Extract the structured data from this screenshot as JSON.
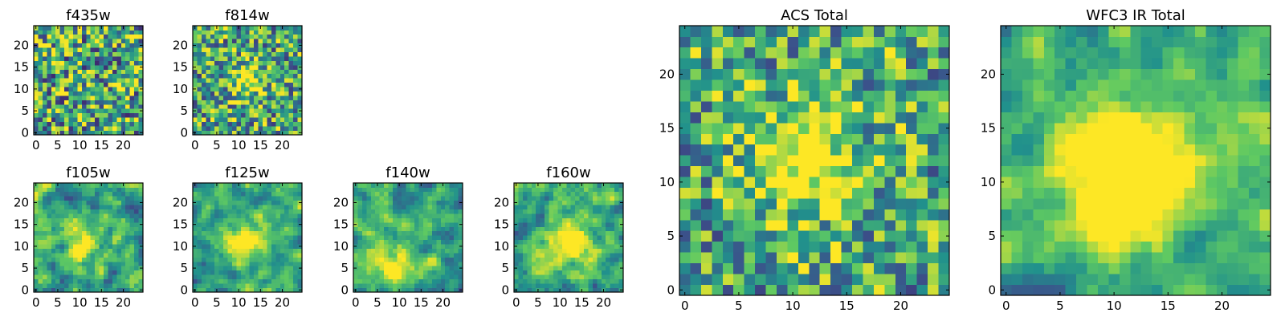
{
  "figure": {
    "colormap": "viridis",
    "colormap_stops": [
      "#440154",
      "#3b528b",
      "#21918c",
      "#5ec962",
      "#fde725"
    ]
  },
  "chart_data": [
    {
      "id": "f435w",
      "type": "heatmap",
      "title": "f435w",
      "grid_size": 25,
      "xlim": [
        0,
        24
      ],
      "ylim": [
        0,
        24
      ],
      "origin": "lower",
      "x_ticks": [
        0,
        5,
        10,
        15,
        20
      ],
      "y_ticks": [
        0,
        5,
        10,
        15,
        20
      ],
      "x_tick_labels": [
        "0",
        "5",
        "10",
        "15",
        "20"
      ],
      "y_tick_labels": [
        "0",
        "5",
        "10",
        "15",
        "20"
      ],
      "pattern": "noise",
      "noise_level": 0.95,
      "seed": 11,
      "peak": {
        "x": 12,
        "y": 12,
        "amplitude": 0.0,
        "width": 4
      }
    },
    {
      "id": "f814w",
      "type": "heatmap",
      "title": "f814w",
      "grid_size": 25,
      "xlim": [
        0,
        24
      ],
      "ylim": [
        0,
        24
      ],
      "origin": "lower",
      "x_ticks": [
        0,
        5,
        10,
        15,
        20
      ],
      "y_ticks": [
        0,
        5,
        10,
        15,
        20
      ],
      "x_tick_labels": [
        "0",
        "5",
        "10",
        "15",
        "20"
      ],
      "y_tick_labels": [
        "0",
        "5",
        "10",
        "15",
        "20"
      ],
      "pattern": "noise",
      "noise_level": 0.85,
      "seed": 23,
      "peak": {
        "x": 12,
        "y": 12,
        "amplitude": 0.5,
        "width": 2.5
      }
    },
    {
      "id": "f105w",
      "type": "heatmap",
      "title": "f105w",
      "grid_size": 25,
      "xlim": [
        0,
        24
      ],
      "ylim": [
        0,
        24
      ],
      "origin": "lower",
      "x_ticks": [
        0,
        5,
        10,
        15,
        20
      ],
      "y_ticks": [
        0,
        5,
        10,
        15,
        20
      ],
      "x_tick_labels": [
        "0",
        "5",
        "10",
        "15",
        "20"
      ],
      "y_tick_labels": [
        "0",
        "5",
        "10",
        "15",
        "20"
      ],
      "pattern": "smooth",
      "noise_level": 0.75,
      "seed": 37,
      "peak": {
        "x": 11,
        "y": 10,
        "amplitude": 0.45,
        "width": 3
      }
    },
    {
      "id": "f125w",
      "type": "heatmap",
      "title": "f125w",
      "grid_size": 25,
      "xlim": [
        0,
        24
      ],
      "ylim": [
        0,
        24
      ],
      "origin": "lower",
      "x_ticks": [
        0,
        5,
        10,
        15,
        20
      ],
      "y_ticks": [
        0,
        5,
        10,
        15,
        20
      ],
      "x_tick_labels": [
        "0",
        "5",
        "10",
        "15",
        "20"
      ],
      "y_tick_labels": [
        "0",
        "5",
        "10",
        "15",
        "20"
      ],
      "pattern": "smooth",
      "noise_level": 0.7,
      "seed": 41,
      "peak": {
        "x": 12,
        "y": 11,
        "amplitude": 0.55,
        "width": 3.5
      }
    },
    {
      "id": "f140w",
      "type": "heatmap",
      "title": "f140w",
      "grid_size": 25,
      "xlim": [
        0,
        24
      ],
      "ylim": [
        0,
        24
      ],
      "origin": "lower",
      "x_ticks": [
        0,
        5,
        10,
        15,
        20
      ],
      "y_ticks": [
        0,
        5,
        10,
        15,
        20
      ],
      "x_tick_labels": [
        "0",
        "5",
        "10",
        "15",
        "20"
      ],
      "y_tick_labels": [
        "0",
        "5",
        "10",
        "15",
        "20"
      ],
      "pattern": "smooth",
      "noise_level": 0.7,
      "seed": 53,
      "peak": {
        "x": 9,
        "y": 5,
        "amplitude": 0.5,
        "width": 3
      }
    },
    {
      "id": "f160w",
      "type": "heatmap",
      "title": "f160w",
      "grid_size": 25,
      "xlim": [
        0,
        24
      ],
      "ylim": [
        0,
        24
      ],
      "origin": "lower",
      "x_ticks": [
        0,
        5,
        10,
        15,
        20
      ],
      "y_ticks": [
        0,
        5,
        10,
        15,
        20
      ],
      "x_tick_labels": [
        "0",
        "5",
        "10",
        "15",
        "20"
      ],
      "y_tick_labels": [
        "0",
        "5",
        "10",
        "15",
        "20"
      ],
      "pattern": "smooth",
      "noise_level": 0.7,
      "seed": 67,
      "peak": {
        "x": 12,
        "y": 11,
        "amplitude": 0.55,
        "width": 3.5
      }
    },
    {
      "id": "acs-total",
      "type": "heatmap",
      "title": "ACS Total",
      "grid_size": 25,
      "xlim": [
        0,
        24
      ],
      "ylim": [
        0,
        24
      ],
      "origin": "lower",
      "x_ticks": [
        0,
        5,
        10,
        15,
        20
      ],
      "y_ticks": [
        0,
        5,
        10,
        15,
        20
      ],
      "x_tick_labels": [
        "0",
        "5",
        "10",
        "15",
        "20"
      ],
      "y_tick_labels": [
        "0",
        "5",
        "10",
        "15",
        "20"
      ],
      "pattern": "noise",
      "noise_level": 0.8,
      "seed": 79,
      "peak": {
        "x": 11,
        "y": 12,
        "amplitude": 0.6,
        "width": 3.5
      }
    },
    {
      "id": "wfc3-ir-total",
      "type": "heatmap",
      "title": "WFC3 IR Total",
      "grid_size": 25,
      "xlim": [
        0,
        24
      ],
      "ylim": [
        0,
        24
      ],
      "origin": "lower",
      "x_ticks": [
        0,
        5,
        10,
        15,
        20
      ],
      "y_ticks": [
        0,
        5,
        10,
        15,
        20
      ],
      "x_tick_labels": [
        "0",
        "5",
        "10",
        "15",
        "20"
      ],
      "y_tick_labels": [
        "0",
        "5",
        "10",
        "15",
        "20"
      ],
      "pattern": "smooth",
      "noise_level": 0.65,
      "seed": 97,
      "peak": {
        "x": 11,
        "y": 11,
        "amplitude": 0.75,
        "width": 4
      }
    }
  ]
}
